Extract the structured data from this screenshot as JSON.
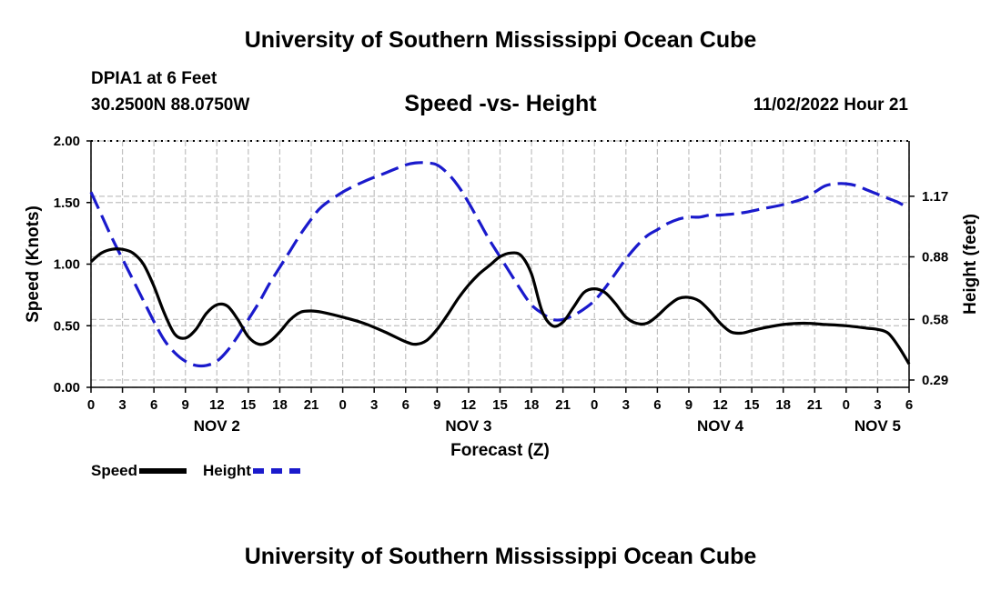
{
  "header": {
    "title": "University of Southern Mississippi Ocean Cube",
    "station": "DPIA1 at 6 Feet",
    "coords": "30.2500N  88.0750W",
    "subtitle": "Speed -vs- Height",
    "datetime": "11/02/2022 Hour 21"
  },
  "footer": {
    "title": "University of Southern Mississippi Ocean Cube"
  },
  "legend": {
    "speed_label": "Speed",
    "height_label": "Height"
  },
  "colors": {
    "speed": "#000000",
    "height": "#1a1acc",
    "grid": "#c0c0c0"
  },
  "chart_data": {
    "type": "line",
    "title": "Speed -vs- Height",
    "xlabel": "Forecast (Z)",
    "ylabel": "Speed (Knots)",
    "y2label": "Height (feet)",
    "xlim": [
      0,
      78
    ],
    "ylim": [
      0,
      2
    ],
    "y2ticks": [
      {
        "value": 0.29,
        "label": "0.29"
      },
      {
        "value": 0.58,
        "label": "0.58"
      },
      {
        "value": 0.88,
        "label": "0.88"
      },
      {
        "value": 1.17,
        "label": "1.17"
      }
    ],
    "y2lim": [
      0.255,
      1.435
    ],
    "yticks": [
      "0.00",
      "0.50",
      "1.00",
      "1.50",
      "2.00"
    ],
    "xtick_labels": [
      "0",
      "3",
      "6",
      "9",
      "12",
      "15",
      "18",
      "21",
      "0",
      "3",
      "6",
      "9",
      "12",
      "15",
      "18",
      "21",
      "0",
      "3",
      "6",
      "9",
      "12",
      "15",
      "18",
      "21",
      "0",
      "3",
      "6"
    ],
    "date_labels": [
      {
        "hour": 12,
        "label": "NOV 2"
      },
      {
        "hour": 36,
        "label": "NOV 3"
      },
      {
        "hour": 60,
        "label": "NOV 4"
      },
      {
        "hour": 75,
        "label": "NOV 5"
      }
    ],
    "series": [
      {
        "name": "Speed",
        "axis": "left",
        "style": "solid",
        "x": [
          0,
          1,
          2,
          3,
          4,
          5,
          6,
          7,
          8,
          9,
          10,
          11,
          12,
          13,
          14,
          15,
          16,
          17,
          18,
          19,
          20,
          21,
          22,
          24,
          26,
          28,
          30,
          31,
          32,
          33,
          34,
          35,
          36,
          37,
          38,
          39,
          40,
          41,
          42,
          43,
          44,
          45,
          46,
          47,
          48,
          49,
          50,
          51,
          52,
          53,
          54,
          55,
          56,
          57,
          58,
          59,
          60,
          61,
          62,
          63,
          64,
          66,
          68,
          70,
          72,
          74,
          75,
          76,
          77,
          78
        ],
        "values": [
          1.02,
          1.09,
          1.12,
          1.12,
          1.09,
          1.0,
          0.82,
          0.6,
          0.43,
          0.4,
          0.47,
          0.6,
          0.67,
          0.66,
          0.55,
          0.41,
          0.35,
          0.37,
          0.45,
          0.55,
          0.61,
          0.62,
          0.61,
          0.57,
          0.52,
          0.45,
          0.37,
          0.35,
          0.38,
          0.47,
          0.59,
          0.72,
          0.83,
          0.92,
          0.99,
          1.06,
          1.09,
          1.07,
          0.92,
          0.62,
          0.5,
          0.53,
          0.65,
          0.77,
          0.8,
          0.77,
          0.68,
          0.57,
          0.52,
          0.52,
          0.58,
          0.66,
          0.72,
          0.73,
          0.7,
          0.62,
          0.52,
          0.45,
          0.44,
          0.46,
          0.48,
          0.51,
          0.52,
          0.51,
          0.5,
          0.48,
          0.47,
          0.44,
          0.33,
          0.19
        ]
      },
      {
        "name": "Height",
        "axis": "right",
        "style": "dashed",
        "x": [
          0,
          1,
          2,
          3,
          4,
          5,
          6,
          7,
          8,
          9,
          10,
          11,
          12,
          13,
          14,
          15,
          16,
          17,
          18,
          19,
          20,
          21,
          22,
          24,
          26,
          28,
          30,
          31,
          32,
          33,
          34,
          35,
          36,
          37,
          38,
          39,
          40,
          41,
          42,
          43,
          44,
          45,
          46,
          47,
          48,
          49,
          50,
          51,
          52,
          53,
          54,
          55,
          56,
          57,
          58,
          59,
          60,
          62,
          64,
          66,
          68,
          69,
          70,
          71,
          72,
          73,
          74,
          75,
          76,
          77,
          78
        ],
        "values": [
          1.19,
          1.08,
          0.97,
          0.87,
          0.77,
          0.67,
          0.57,
          0.48,
          0.42,
          0.38,
          0.36,
          0.36,
          0.38,
          0.43,
          0.5,
          0.58,
          0.66,
          0.75,
          0.83,
          0.91,
          0.99,
          1.06,
          1.12,
          1.19,
          1.24,
          1.28,
          1.32,
          1.33,
          1.33,
          1.32,
          1.28,
          1.22,
          1.14,
          1.05,
          0.96,
          0.88,
          0.8,
          0.72,
          0.65,
          0.61,
          0.58,
          0.58,
          0.6,
          0.63,
          0.67,
          0.73,
          0.8,
          0.87,
          0.93,
          0.98,
          1.01,
          1.04,
          1.06,
          1.07,
          1.07,
          1.08,
          1.08,
          1.09,
          1.11,
          1.13,
          1.16,
          1.19,
          1.22,
          1.23,
          1.23,
          1.22,
          1.2,
          1.18,
          1.16,
          1.14,
          1.11
        ]
      }
    ]
  }
}
